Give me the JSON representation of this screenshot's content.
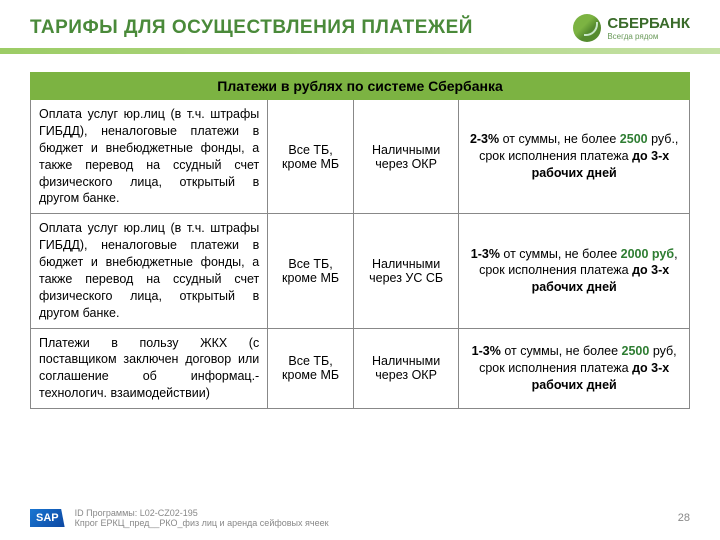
{
  "header": {
    "title": "ТАРИФЫ ДЛЯ ОСУЩЕСТВЛЕНИЯ ПЛАТЕЖЕЙ",
    "logo_text": "СБЕРБАНК",
    "logo_sub": "Всегда рядом"
  },
  "table": {
    "header": "Платежи в рублях по системе Сбербанка",
    "rows": [
      {
        "desc": "Оплата услуг юр.лиц (в т.ч. штрафы ГИБДД), неналоговые платежи в бюджет и внебюджетные фонды, а также перевод на ссудный счет физического лица, открытый в другом банке.",
        "col2": "Все ТБ, кроме МБ",
        "col3": "Наличными через ОКР",
        "col4_parts": {
          "p1": "2-3%",
          "p2": " от суммы, не более ",
          "p3": "2500",
          "p4": " руб., срок исполнения платежа ",
          "p5": "до 3-х рабочих дней"
        }
      },
      {
        "desc": "Оплата услуг юр.лиц (в т.ч. штрафы ГИБДД), неналоговые платежи в бюджет и внебюджетные фонды, а также перевод на ссудный счет физического лица, открытый в другом банке.",
        "col2": "Все ТБ, кроме МБ",
        "col3": "Наличными через УС СБ",
        "col4_parts": {
          "p1": "1-3%",
          "p2": " от суммы, не более ",
          "p3": "2000 руб",
          "p4": ", срок исполнения платежа ",
          "p5": "до 3-х рабочих дней"
        }
      },
      {
        "desc": "Платежи в пользу ЖКХ (с поставщиком заключен договор или соглашение об информац.-технологич. взаимодействии)",
        "col2": "Все ТБ, кроме МБ",
        "col3": "Наличными через ОКР",
        "col4_parts": {
          "p1": "1-3%",
          "p2": " от суммы, не более ",
          "p3": "2500",
          "p4": " руб, срок исполнения платежа ",
          "p5": "до 3-х рабочих дней"
        }
      }
    ]
  },
  "footer": {
    "sap": "SAP",
    "line1": "ID Программы: L02-CZ02-195",
    "line2": "Кпрог ЕРКЦ_пред__РКО_физ лиц и аренда сейфовых ячеек",
    "page": "28"
  },
  "colors": {
    "title_green": "#4a8a3a",
    "header_bg": "#7cb342",
    "highlight_green": "#2e7d32",
    "border": "#888888"
  }
}
